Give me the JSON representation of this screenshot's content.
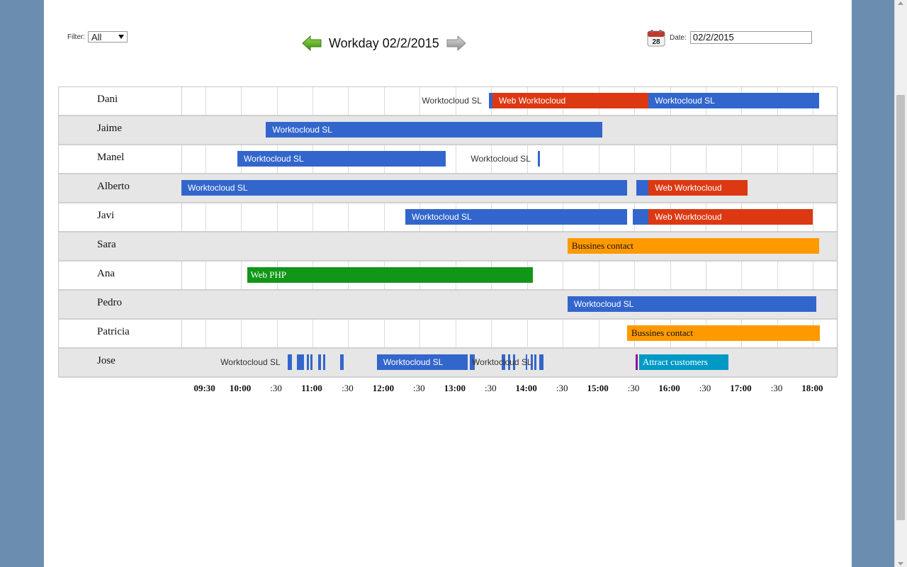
{
  "filter": {
    "label": "Filter:",
    "value": "All"
  },
  "header": {
    "title": "Workday 02/2/2015"
  },
  "date": {
    "label": "Date:",
    "value": "02/2/2015",
    "calendar_day": "28"
  },
  "colors": {
    "blue": "#3366cc",
    "red": "#dc3912",
    "green": "#109618",
    "orange": "#ff9900",
    "teal": "#0099c6",
    "purple": "#990099"
  },
  "icons": {
    "prev": "green-left-arrow-icon",
    "next": "gray-right-arrow-icon",
    "calendar": "calendar-icon"
  },
  "chart_data": {
    "type": "timeline",
    "x_range": [
      "09:10",
      "18:20"
    ],
    "axis_ticks": [
      {
        "label": "09:30",
        "time": "09:30",
        "major": true
      },
      {
        "label": "10:00",
        "time": "10:00",
        "major": true
      },
      {
        "label": ":30",
        "time": "10:30",
        "major": false
      },
      {
        "label": "11:00",
        "time": "11:00",
        "major": true
      },
      {
        "label": ":30",
        "time": "11:30",
        "major": false
      },
      {
        "label": "12:00",
        "time": "12:00",
        "major": true
      },
      {
        "label": ":30",
        "time": "12:30",
        "major": false
      },
      {
        "label": "13:00",
        "time": "13:00",
        "major": true
      },
      {
        "label": ":30",
        "time": "13:30",
        "major": false
      },
      {
        "label": "14:00",
        "time": "14:00",
        "major": true
      },
      {
        "label": ":30",
        "time": "14:30",
        "major": false
      },
      {
        "label": "15:00",
        "time": "15:00",
        "major": true
      },
      {
        "label": ":30",
        "time": "15:30",
        "major": false
      },
      {
        "label": "16:00",
        "time": "16:00",
        "major": true
      },
      {
        "label": ":30",
        "time": "16:30",
        "major": false
      },
      {
        "label": "17:00",
        "time": "17:00",
        "major": true
      },
      {
        "label": ":30",
        "time": "17:30",
        "major": false
      },
      {
        "label": "18:00",
        "time": "18:00",
        "major": true
      }
    ],
    "rows": [
      {
        "name": "Dani",
        "tasks": [
          {
            "label": "Worktocloud SL",
            "start": "13:28",
            "end": "13:31",
            "color": "blue",
            "label_outside": true
          },
          {
            "label": "Web Worktocloud",
            "start": "13:31",
            "end": "15:42",
            "color": "red"
          },
          {
            "label": "Worktocloud SL",
            "start": "15:42",
            "end": "18:05",
            "color": "blue"
          }
        ]
      },
      {
        "name": "Jaime",
        "tasks": [
          {
            "label": "Worktocloud SL",
            "start": "10:21",
            "end": "15:03",
            "color": "blue"
          }
        ]
      },
      {
        "name": "Manel",
        "tasks": [
          {
            "label": "Worktocloud SL",
            "start": "09:57",
            "end": "12:52",
            "color": "blue"
          },
          {
            "label": "Worktocloud SL",
            "start": "14:09",
            "end": "14:11",
            "color": "blue",
            "label_outside": true
          }
        ]
      },
      {
        "name": "Alberto",
        "tasks": [
          {
            "label": "Worktocloud SL",
            "start": "09:10",
            "end": "15:24",
            "color": "blue"
          },
          {
            "label": "",
            "start": "15:32",
            "end": "15:42",
            "color": "blue"
          },
          {
            "label": "Web Worktocloud",
            "start": "15:42",
            "end": "17:05",
            "color": "red"
          }
        ]
      },
      {
        "name": "Javi",
        "tasks": [
          {
            "label": "Worktocloud SL",
            "start": "12:18",
            "end": "15:24",
            "color": "blue"
          },
          {
            "label": "",
            "start": "15:29",
            "end": "15:42",
            "color": "blue"
          },
          {
            "label": "Web Worktocloud",
            "start": "15:42",
            "end": "18:00",
            "color": "red"
          }
        ]
      },
      {
        "name": "Sara",
        "tasks": [
          {
            "label": "Bussines contact",
            "start": "14:34",
            "end": "18:05",
            "color": "orange"
          }
        ]
      },
      {
        "name": "Ana",
        "tasks": [
          {
            "label": "Web PHP",
            "start": "10:05",
            "end": "14:05",
            "color": "green"
          }
        ]
      },
      {
        "name": "Pedro",
        "tasks": [
          {
            "label": "Worktocloud SL",
            "start": "14:34",
            "end": "18:03",
            "color": "blue"
          }
        ]
      },
      {
        "name": "Patricia",
        "tasks": [
          {
            "label": "Bussines contact",
            "start": "15:24",
            "end": "18:06",
            "color": "orange"
          }
        ]
      },
      {
        "name": "Jose",
        "tasks": [
          {
            "label": "Worktocloud SL",
            "start": "10:39",
            "end": "10:43",
            "color": "blue",
            "label_outside": true
          },
          {
            "label": "",
            "start": "10:47",
            "end": "10:53",
            "color": "blue"
          },
          {
            "label": "",
            "start": "10:55",
            "end": "10:57",
            "color": "blue"
          },
          {
            "label": "",
            "start": "10:58",
            "end": "11:00",
            "color": "blue"
          },
          {
            "label": "",
            "start": "11:05",
            "end": "11:07",
            "color": "blue"
          },
          {
            "label": "",
            "start": "11:09",
            "end": "11:11",
            "color": "blue"
          },
          {
            "label": "",
            "start": "11:23",
            "end": "11:26",
            "color": "blue"
          },
          {
            "label": "Worktocloud SL",
            "start": "11:54",
            "end": "13:10",
            "color": "blue"
          },
          {
            "label": "",
            "start": "13:12",
            "end": "13:16",
            "color": "blue"
          },
          {
            "label": "",
            "start": "13:39",
            "end": "13:42",
            "color": "blue"
          },
          {
            "label": "",
            "start": "13:44",
            "end": "13:46",
            "color": "blue"
          },
          {
            "label": "",
            "start": "13:48",
            "end": "13:50",
            "color": "blue"
          },
          {
            "label": "",
            "start": "13:59",
            "end": "14:00",
            "color": "blue"
          },
          {
            "label": "",
            "start": "14:03",
            "end": "14:05",
            "color": "blue"
          },
          {
            "label": "",
            "start": "14:06",
            "end": "14:08",
            "color": "blue"
          },
          {
            "label": "Worktocloud SL",
            "start": "14:10",
            "end": "14:14",
            "color": "blue",
            "label_outside": true
          },
          {
            "label": "",
            "start": "15:31",
            "end": "15:33",
            "color": "purple"
          },
          {
            "label": "Attract customers",
            "start": "15:34",
            "end": "16:49",
            "color": "teal"
          }
        ]
      }
    ]
  }
}
